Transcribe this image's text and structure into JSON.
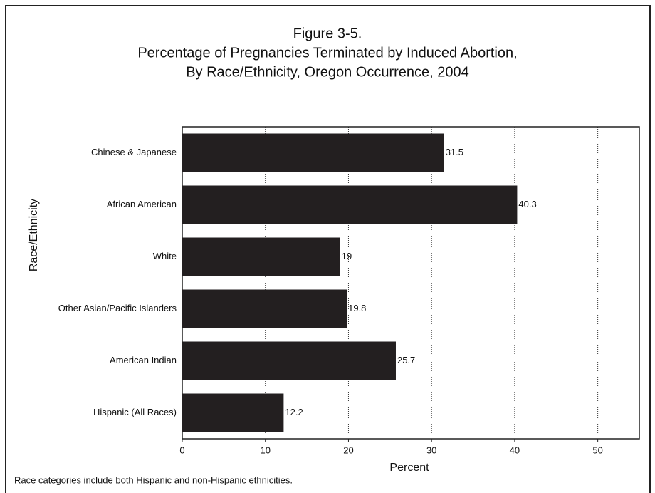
{
  "chart_data": {
    "type": "hbar",
    "title": [
      "Figure 3-5.",
      "Percentage of Pregnancies Terminated by Induced Abortion,",
      "By Race/Ethnicity, Oregon Occurrence, 2004"
    ],
    "categories": [
      "Chinese & Japanese",
      "African American",
      "White",
      "Other Asian/Pacific Islanders",
      "American Indian",
      "Hispanic (All Races)"
    ],
    "values": [
      31.5,
      40.3,
      19,
      19.8,
      25.7,
      12.2
    ],
    "color": "#231f20",
    "xlim": [
      0,
      55
    ],
    "xticks": [
      0,
      10,
      20,
      30,
      40,
      50
    ],
    "grid": true,
    "x_label": "Percent",
    "y_label": "Race/Ethnicity",
    "note": "Race categories include both Hispanic and non-Hispanic ethnicities."
  }
}
